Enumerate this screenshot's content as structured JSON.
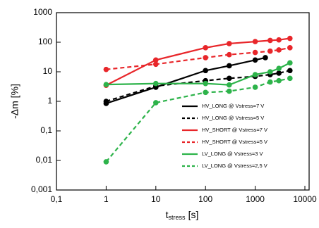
{
  "chart_data": {
    "type": "line",
    "xlabel": [
      "t",
      "stress",
      "[s]"
    ],
    "ylabel": "-Δm [%]",
    "xscale": "log",
    "yscale": "log",
    "xlim": [
      0.1,
      10000
    ],
    "ylim": [
      0.001,
      1000
    ],
    "xticks": [
      {
        "value": 0.1,
        "label": "0,1"
      },
      1,
      10,
      100,
      1000,
      10000
    ],
    "yticks": [
      {
        "value": 0.001,
        "label": "0,001"
      },
      {
        "value": 0.01,
        "label": "0,01"
      },
      {
        "value": 0.1,
        "label": "0,1"
      },
      1,
      10,
      100,
      1000
    ],
    "grid": false,
    "legend": "lower right",
    "series": [
      {
        "name": "HV_LONG @ Vstress=7 V",
        "color": "#000000",
        "dash": false,
        "x": [
          1,
          10,
          100,
          300,
          1000,
          1600
        ],
        "values": [
          0.85,
          3,
          11,
          16,
          25,
          30
        ]
      },
      {
        "name": "HV_LONG @ Vstress=5 V",
        "color": "#000000",
        "dash": true,
        "x": [
          1,
          10,
          100,
          300,
          1000,
          2000,
          3000,
          5000
        ],
        "values": [
          1,
          3.3,
          5,
          6,
          7,
          8,
          9,
          11
        ]
      },
      {
        "name": "HV_SHORT @ Vstress=7 V",
        "color": "#e8262a",
        "dash": false,
        "x": [
          1,
          10,
          100,
          300,
          1000,
          2000,
          3000,
          5000
        ],
        "values": [
          3.5,
          25,
          65,
          90,
          105,
          115,
          120,
          135
        ]
      },
      {
        "name": "HV_SHORT @ Vstress=5 V",
        "color": "#e8262a",
        "dash": true,
        "x": [
          1,
          10,
          100,
          300,
          1000,
          2000,
          3000,
          5000
        ],
        "values": [
          12,
          18,
          30,
          38,
          45,
          50,
          55,
          65
        ]
      },
      {
        "name": "LV_LONG @ Vstress=3 V",
        "color": "#2db34a",
        "dash": false,
        "x": [
          1,
          10,
          100,
          300,
          1000,
          2000,
          3000,
          5000
        ],
        "values": [
          3.7,
          4,
          4,
          3.6,
          8,
          10,
          13,
          20
        ]
      },
      {
        "name": "LV_LONG @ Vstress=2,5 V",
        "color": "#2db34a",
        "dash": true,
        "x": [
          1,
          10,
          100,
          300,
          1000,
          2000,
          3000,
          5000
        ],
        "values": [
          0.009,
          0.9,
          2,
          2.2,
          3,
          4.5,
          5,
          6
        ]
      }
    ]
  }
}
